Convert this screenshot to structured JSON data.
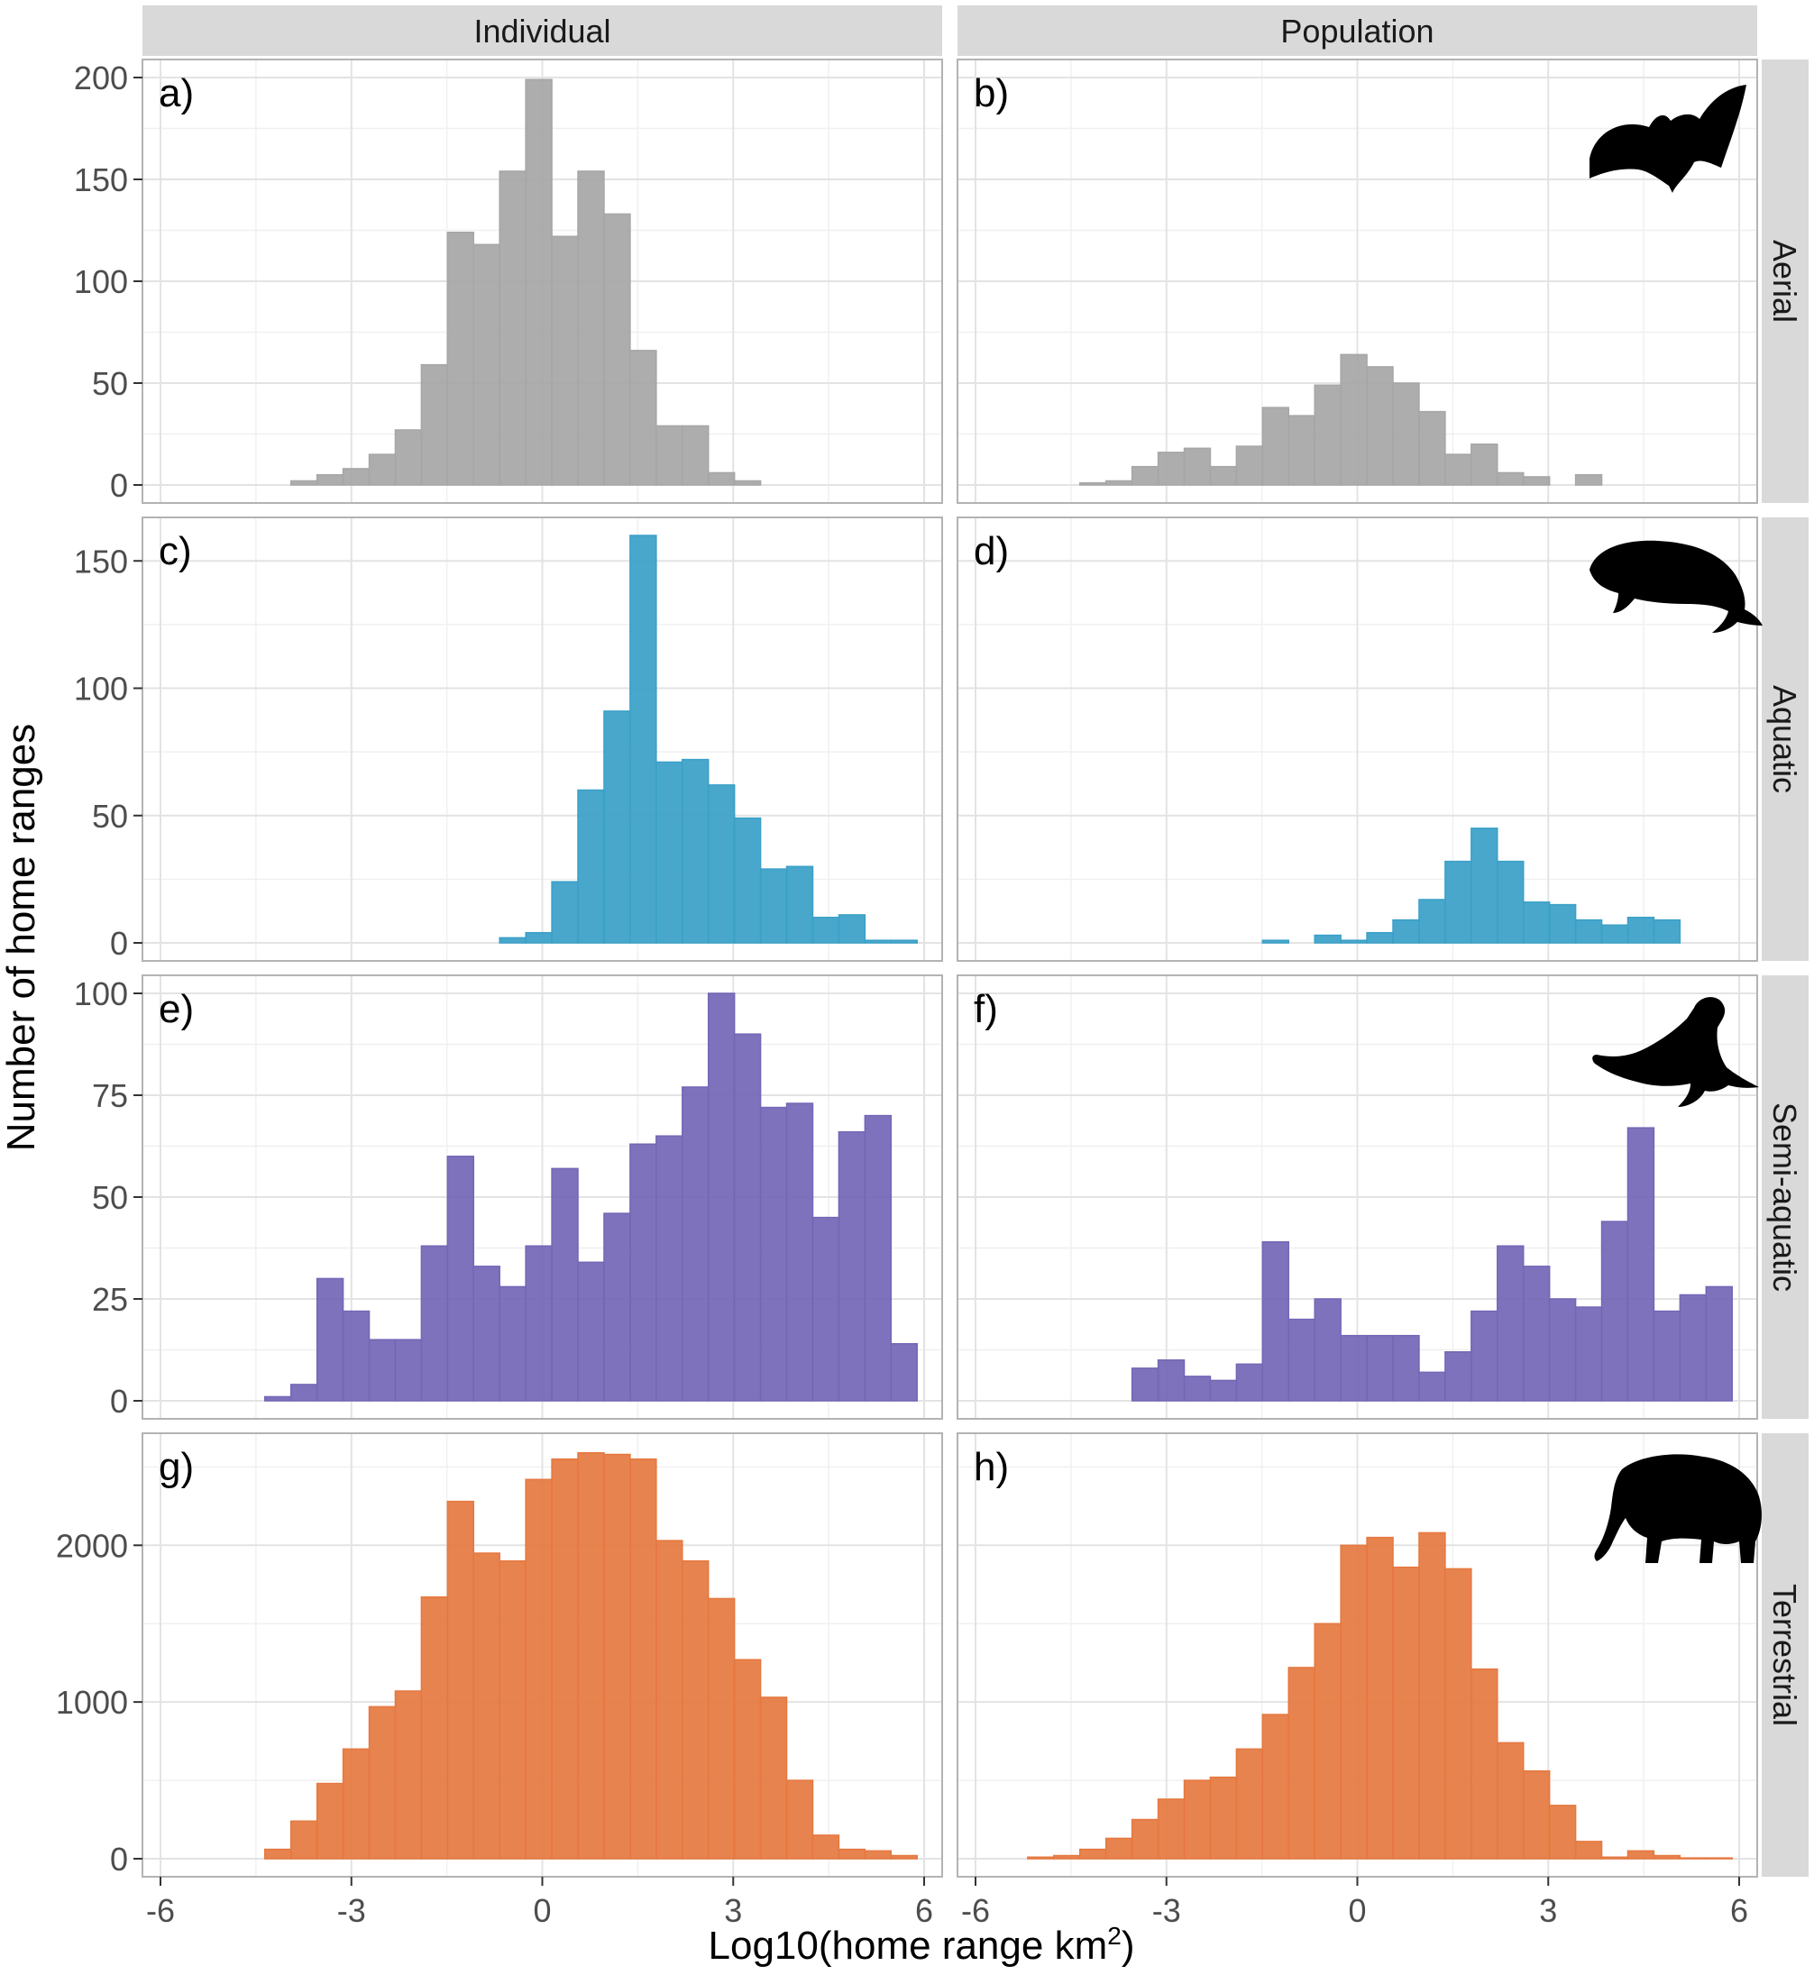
{
  "chart_data": {
    "type": "bar",
    "xlabel": "Log10(home range km",
    "xlabel_sup": "2",
    "xlabel_tail": ")",
    "ylabel": "Number of home ranges",
    "x_ticks": [
      -6,
      -3,
      0,
      3,
      6
    ],
    "xlim": [
      -6,
      6
    ],
    "bin_width": 0.41,
    "grid": true,
    "legend": "none",
    "col_facets": [
      "Individual",
      "Population"
    ],
    "row_facets": [
      {
        "label": "Aerial",
        "color": "#a6a6a6",
        "ylim": [
          0,
          200
        ],
        "y_ticks": [
          0,
          50,
          100,
          150,
          200
        ],
        "silhouette": "bat-icon"
      },
      {
        "label": "Aquatic",
        "color": "#3aa0c8",
        "ylim": [
          0,
          160
        ],
        "y_ticks": [
          0,
          50,
          100,
          150
        ],
        "silhouette": "whale-icon"
      },
      {
        "label": "Semi-aquatic",
        "color": "#7466b6",
        "ylim": [
          0,
          100
        ],
        "y_ticks": [
          0,
          25,
          50,
          75,
          100
        ],
        "silhouette": "seal-icon"
      },
      {
        "label": "Terrestrial",
        "color": "#e5783f",
        "ylim": [
          0,
          2600
        ],
        "y_ticks": [
          0,
          1000,
          2000
        ],
        "silhouette": "elephant-icon"
      }
    ],
    "panels": [
      {
        "tag": "a)",
        "row": 0,
        "col": 0,
        "values": [
          0,
          0,
          0,
          0,
          0,
          2,
          5,
          8,
          15,
          27,
          59,
          124,
          118,
          154,
          199,
          122,
          154,
          133,
          66,
          29,
          29,
          6,
          2,
          0,
          0,
          0,
          0,
          0,
          0,
          0
        ]
      },
      {
        "tag": "b)",
        "row": 0,
        "col": 1,
        "values": [
          0,
          0,
          0,
          0,
          1,
          2,
          9,
          16,
          18,
          9,
          19,
          38,
          34,
          49,
          64,
          58,
          50,
          36,
          15,
          20,
          6,
          4,
          0,
          5,
          0,
          0,
          0,
          0,
          0,
          0
        ]
      },
      {
        "tag": "c)",
        "row": 1,
        "col": 0,
        "values": [
          0,
          0,
          0,
          0,
          0,
          0,
          0,
          0,
          0,
          0,
          0,
          0,
          0,
          2,
          4,
          24,
          60,
          91,
          160,
          71,
          72,
          62,
          49,
          29,
          30,
          10,
          11,
          1,
          1,
          0
        ]
      },
      {
        "tag": "d)",
        "row": 1,
        "col": 1,
        "values": [
          0,
          0,
          0,
          0,
          0,
          0,
          0,
          0,
          0,
          0,
          0,
          1,
          0,
          3,
          1,
          4,
          9,
          17,
          32,
          45,
          32,
          16,
          15,
          9,
          7,
          10,
          9,
          0,
          0,
          0
        ]
      },
      {
        "tag": "e)",
        "row": 2,
        "col": 0,
        "values": [
          0,
          0,
          0,
          0,
          1,
          4,
          30,
          22,
          15,
          15,
          38,
          60,
          33,
          28,
          38,
          57,
          34,
          46,
          63,
          65,
          77,
          100,
          90,
          72,
          73,
          45,
          66,
          70,
          14,
          0
        ]
      },
      {
        "tag": "f)",
        "row": 2,
        "col": 1,
        "values": [
          0,
          0,
          0,
          0,
          0,
          0,
          8,
          10,
          6,
          5,
          9,
          39,
          20,
          25,
          16,
          16,
          16,
          7,
          12,
          22,
          38,
          33,
          25,
          23,
          44,
          67,
          22,
          26,
          28,
          0
        ]
      },
      {
        "tag": "g)",
        "row": 3,
        "col": 0,
        "values": [
          0,
          0,
          0,
          0,
          60,
          240,
          480,
          700,
          970,
          1070,
          1670,
          2280,
          1950,
          1900,
          2420,
          2550,
          2590,
          2580,
          2550,
          2030,
          1900,
          1660,
          1270,
          1030,
          500,
          150,
          60,
          50,
          20,
          0
        ]
      },
      {
        "tag": "h)",
        "row": 3,
        "col": 1,
        "values": [
          0,
          0,
          10,
          20,
          60,
          130,
          250,
          380,
          500,
          520,
          700,
          920,
          1220,
          1500,
          2000,
          2050,
          1860,
          2080,
          1850,
          1210,
          740,
          560,
          340,
          110,
          10,
          50,
          20,
          5,
          5,
          0
        ]
      }
    ]
  }
}
